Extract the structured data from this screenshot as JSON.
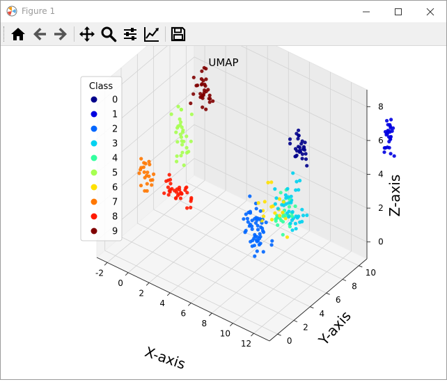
{
  "window": {
    "title": "Figure 1",
    "controls": [
      "minimize",
      "maximize",
      "close"
    ]
  },
  "toolbar": {
    "buttons": [
      {
        "name": "home",
        "icon": "home-icon"
      },
      {
        "name": "back",
        "icon": "arrow-left-icon"
      },
      {
        "name": "forward",
        "icon": "arrow-right-icon"
      },
      {
        "name": "pan",
        "icon": "move-icon"
      },
      {
        "name": "zoom",
        "icon": "magnifier-icon"
      },
      {
        "name": "subplots",
        "icon": "sliders-icon"
      },
      {
        "name": "customize",
        "icon": "line-chart-icon"
      },
      {
        "name": "save",
        "icon": "floppy-disk-icon"
      }
    ]
  },
  "chart_data": {
    "type": "scatter",
    "title": "UMAP",
    "xlabel": "X-axis",
    "ylabel": "Y-axis",
    "zlabel": "Z-axis",
    "x_ticks": [
      "-2",
      "0",
      "2",
      "4",
      "6",
      "8",
      "10",
      "12"
    ],
    "y_ticks": [
      "0",
      "2",
      "4",
      "6",
      "8",
      "10"
    ],
    "z_ticks": [
      "0",
      "2",
      "4",
      "6",
      "8"
    ],
    "xlim": [
      -3,
      13.5
    ],
    "ylim": [
      -1,
      11
    ],
    "zlim": [
      -1,
      9
    ],
    "legend": {
      "title": "Class",
      "placement": "upper-left",
      "entries": [
        {
          "label": "0",
          "color": "#00008b"
        },
        {
          "label": "1",
          "color": "#0000e0"
        },
        {
          "label": "2",
          "color": "#0066ff"
        },
        {
          "label": "3",
          "color": "#00d2f0"
        },
        {
          "label": "4",
          "color": "#33ff9f"
        },
        {
          "label": "5",
          "color": "#a6ff50"
        },
        {
          "label": "6",
          "color": "#ffe100"
        },
        {
          "label": "7",
          "color": "#ff7700"
        },
        {
          "label": "8",
          "color": "#ff1a00"
        },
        {
          "label": "9",
          "color": "#800000"
        }
      ]
    },
    "clusters": [
      {
        "class": 0,
        "center": [
          10.0,
          7.2,
          6.0
        ],
        "spread": [
          0.8,
          0.4,
          0.8
        ],
        "n": 30
      },
      {
        "class": 1,
        "center": [
          14.0,
          13.0,
          5.6
        ],
        "spread": [
          0.4,
          0.4,
          0.9
        ],
        "n": 28
      },
      {
        "class": 2,
        "center": [
          6.6,
          6.3,
          0.8
        ],
        "spread": [
          1.0,
          0.8,
          1.3
        ],
        "n": 55
      },
      {
        "class": 3,
        "center": [
          9.5,
          6.8,
          2.6
        ],
        "spread": [
          1.2,
          0.7,
          1.6
        ],
        "n": 40
      },
      {
        "class": 4,
        "center": [
          9.0,
          6.7,
          2.0
        ],
        "spread": [
          1.0,
          0.7,
          1.1
        ],
        "n": 25
      },
      {
        "class": 5,
        "center": [
          -0.8,
          6.5,
          3.6
        ],
        "spread": [
          1.0,
          0.6,
          1.6
        ],
        "n": 30
      },
      {
        "class": 6,
        "center": [
          7.8,
          6.5,
          2.0
        ],
        "spread": [
          1.5,
          0.8,
          1.8
        ],
        "n": 18
      },
      {
        "class": 7,
        "center": [
          -2.6,
          4.5,
          1.8
        ],
        "spread": [
          0.6,
          0.6,
          1.0
        ],
        "n": 22
      },
      {
        "class": 8,
        "center": [
          1.0,
          3.8,
          2.2
        ],
        "spread": [
          1.5,
          0.4,
          0.6
        ],
        "n": 35
      },
      {
        "class": 9,
        "center": [
          -0.4,
          8.6,
          5.9
        ],
        "spread": [
          0.8,
          0.7,
          1.0
        ],
        "n": 32
      }
    ]
  }
}
